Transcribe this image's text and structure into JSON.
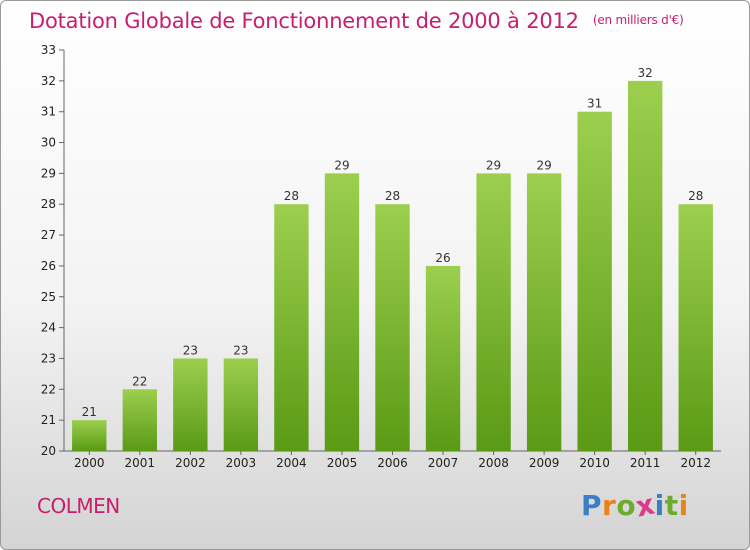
{
  "title": "Dotation Globale de Fonctionnement de 2000 à 2012",
  "subtitle": "(en milliers d'€)",
  "commune": "COLMEN",
  "logo": {
    "letters": [
      "P",
      "r",
      "o",
      "x",
      "i",
      "t",
      "i"
    ],
    "colors": [
      "#3a7fc4",
      "#e8831a",
      "#6cab2c",
      "#e0378c",
      "#3a7fc4",
      "#6cab2c",
      "#e8831a"
    ]
  },
  "chart_data": {
    "type": "bar",
    "categories": [
      "2000",
      "2001",
      "2002",
      "2003",
      "2004",
      "2005",
      "2006",
      "2007",
      "2008",
      "2009",
      "2010",
      "2011",
      "2012"
    ],
    "values": [
      21,
      22,
      23,
      23,
      28,
      29,
      28,
      26,
      29,
      29,
      31,
      32,
      28
    ],
    "ylim": [
      20,
      33
    ],
    "yticks": [
      20,
      21,
      22,
      23,
      24,
      25,
      26,
      27,
      28,
      29,
      30,
      31,
      32,
      33
    ],
    "xlabel": "",
    "ylabel": "",
    "grid": false,
    "bar_color_top": "#9ccf4e",
    "bar_color_bottom": "#5a9a14"
  }
}
